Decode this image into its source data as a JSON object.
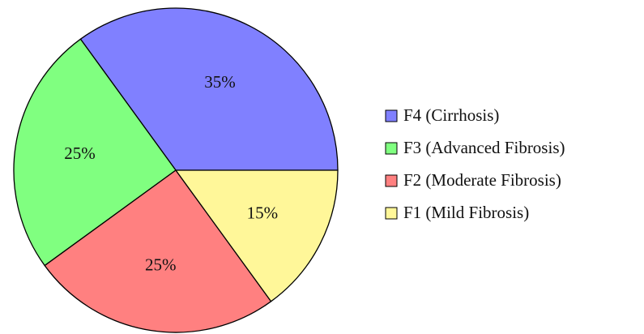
{
  "chart_data": {
    "type": "pie",
    "categories": [
      "F4 (Cirrhosis)",
      "F3 (Advanced Fibrosis)",
      "F2 (Moderate Fibrosis)",
      "F1 (Mild Fibrosis)"
    ],
    "values": [
      35,
      25,
      25,
      15
    ],
    "value_labels": [
      "35%",
      "25%",
      "25%",
      "15%"
    ],
    "colors": [
      "#8080ff",
      "#80ff80",
      "#ff8080",
      "#fff799"
    ],
    "legend": "right"
  }
}
